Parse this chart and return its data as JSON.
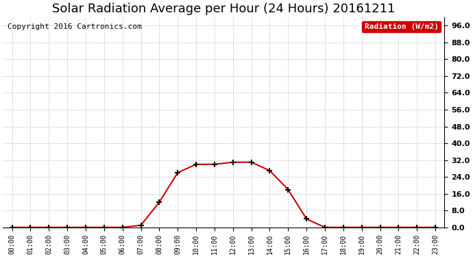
{
  "title": "Solar Radiation Average per Hour (24 Hours) 20161211",
  "copyright": "Copyright 2016 Cartronics.com",
  "legend_label": "Radiation (W/m2)",
  "hours": [
    0,
    1,
    2,
    3,
    4,
    5,
    6,
    7,
    8,
    9,
    10,
    11,
    12,
    13,
    14,
    15,
    16,
    17,
    18,
    19,
    20,
    21,
    22,
    23
  ],
  "values": [
    0,
    0,
    0,
    0,
    0,
    0,
    0,
    1,
    12,
    26,
    30,
    30,
    31,
    31,
    27,
    18,
    4,
    0,
    0,
    0,
    0,
    0,
    0,
    0
  ],
  "xlim": [
    -0.5,
    23.5
  ],
  "ylim": [
    0,
    100
  ],
  "yticks": [
    0,
    8,
    16,
    24,
    32,
    40,
    48,
    56,
    64,
    72,
    80,
    88,
    96
  ],
  "ytick_labels": [
    "0.0",
    "8.0",
    "16.0",
    "24.0",
    "32.0",
    "40.0",
    "48.0",
    "56.0",
    "64.0",
    "72.0",
    "80.0",
    "88.0",
    "96.0"
  ],
  "line_color": "#cc0000",
  "marker_color": "#000000",
  "background_color": "#ffffff",
  "grid_color": "#aaaaaa",
  "title_fontsize": 13,
  "copyright_fontsize": 8,
  "legend_bg": "#cc0000",
  "legend_text_color": "#ffffff"
}
